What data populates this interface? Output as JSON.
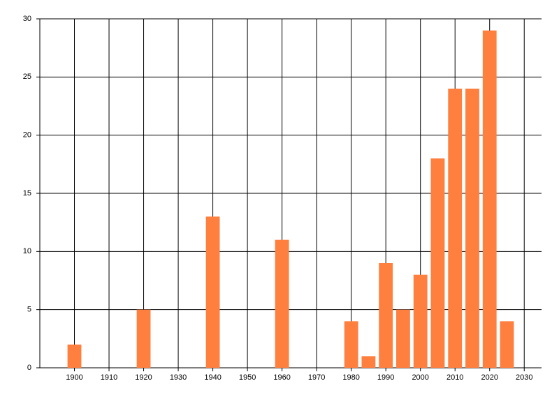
{
  "chart_data": {
    "type": "bar",
    "x": [
      1900,
      1920,
      1940,
      1960,
      1980,
      1985,
      1990,
      1995,
      2000,
      2005,
      2010,
      2015,
      2020,
      2025
    ],
    "values": [
      2,
      5,
      13,
      11,
      4,
      1,
      9,
      5,
      8,
      18,
      24,
      24,
      29,
      4
    ],
    "color": "#ff7f3f",
    "xlim": [
      1890,
      2035
    ],
    "xticks": [
      1900,
      1910,
      1920,
      1930,
      1940,
      1950,
      1960,
      1970,
      1980,
      1990,
      2000,
      2010,
      2020,
      2030
    ],
    "ylim": [
      0,
      30
    ],
    "yticks": [
      0,
      5,
      10,
      15,
      20,
      25,
      30
    ],
    "grid": true
  }
}
